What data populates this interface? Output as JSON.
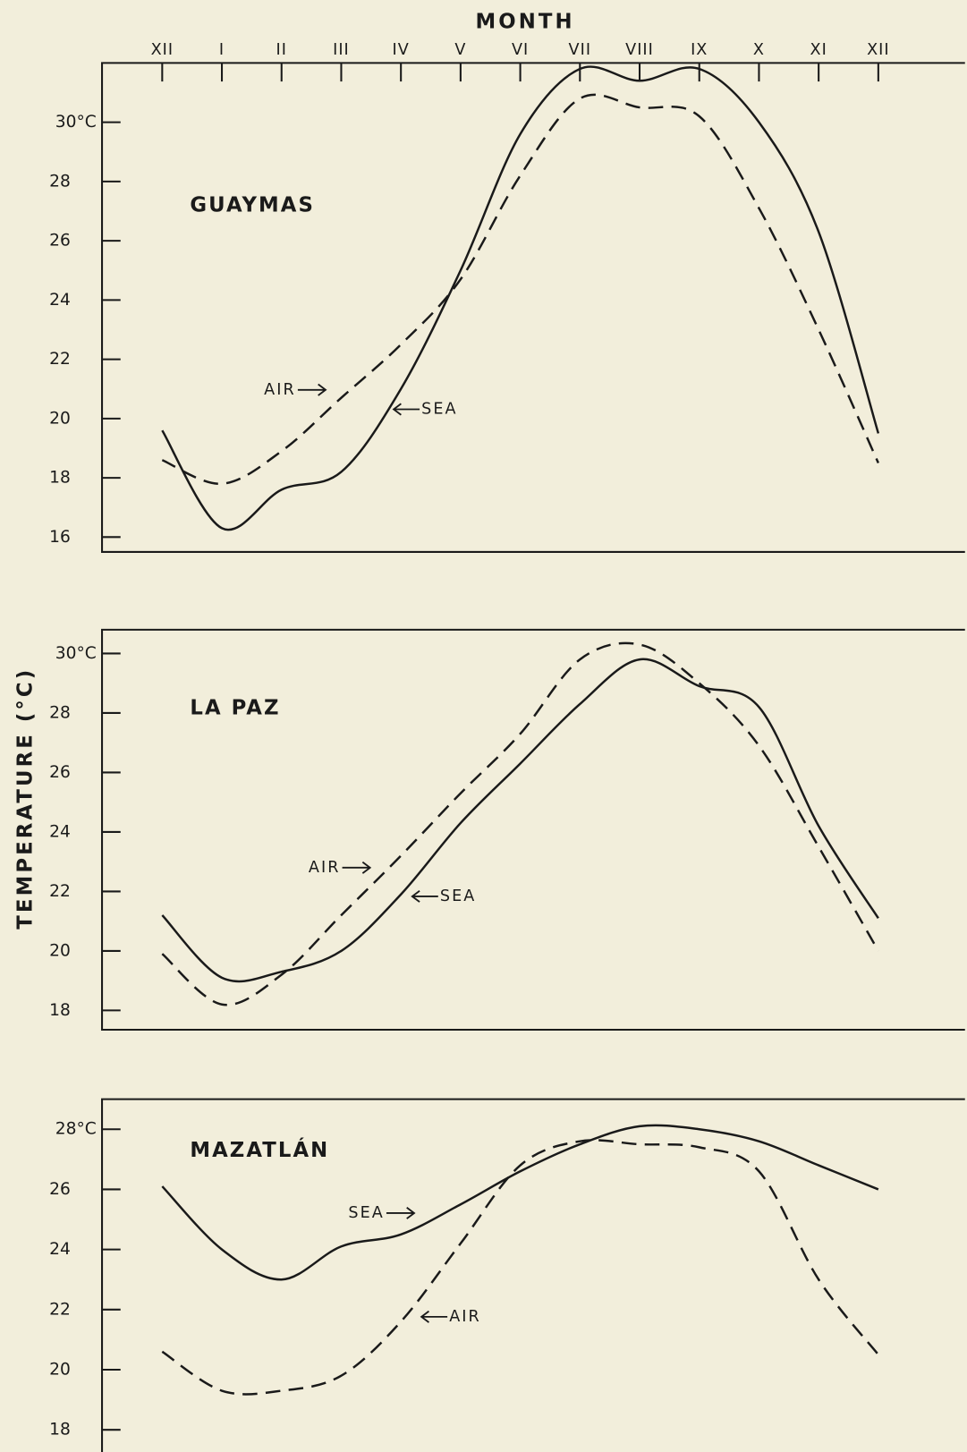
{
  "chart_data": [
    {
      "type": "line",
      "title": "GUAYMAS",
      "xlabel": "MONTH",
      "categories": [
        "XII",
        "I",
        "II",
        "III",
        "IV",
        "V",
        "VI",
        "VII",
        "VIII",
        "IX",
        "X",
        "XI",
        "XII"
      ],
      "ylim": [
        15.5,
        32
      ],
      "yticks": [
        16,
        18,
        20,
        22,
        24,
        26,
        28,
        {
          "value": 30,
          "label": "30°C"
        }
      ],
      "series": [
        {
          "name": "SEA",
          "color": "#1a1a1a",
          "values": [
            19.6,
            16.3,
            17.6,
            18.2,
            21.0,
            25.0,
            29.6,
            31.8,
            31.4,
            31.8,
            30.0,
            26.3,
            19.5
          ]
        },
        {
          "name": "AIR",
          "color": "#1a1a1a",
          "values": [
            18.6,
            17.8,
            18.9,
            20.7,
            22.5,
            24.7,
            28.2,
            30.8,
            30.5,
            30.2,
            27.1,
            23.0,
            18.5
          ]
        }
      ]
    },
    {
      "type": "line",
      "title": "LA PAZ",
      "ylabel": "TEMPERATURE (°C)",
      "ylim": [
        17.35,
        30.8
      ],
      "yticks": [
        18,
        20,
        22,
        24,
        26,
        28,
        {
          "value": 30,
          "label": "30°C"
        }
      ],
      "series": [
        {
          "name": "SEA",
          "color": "#1a1a1a",
          "values": [
            21.2,
            19.1,
            19.3,
            20.0,
            21.9,
            24.3,
            26.3,
            28.3,
            29.8,
            28.9,
            28.2,
            24.2,
            21.1
          ]
        },
        {
          "name": "AIR",
          "color": "#1a1a1a",
          "values": [
            19.9,
            18.2,
            19.2,
            21.2,
            23.2,
            25.3,
            27.3,
            29.8,
            30.3,
            29.0,
            26.9,
            23.5,
            20.0
          ]
        }
      ]
    },
    {
      "type": "line",
      "title": "MAZATLÁN",
      "ylim": [
        17.2,
        29
      ],
      "yticks": [
        18,
        20,
        22,
        24,
        26,
        {
          "value": 28,
          "label": "28°C"
        }
      ],
      "series": [
        {
          "name": "SEA",
          "color": "#1a1a1a",
          "values": [
            26.1,
            24.0,
            23.0,
            24.1,
            24.5,
            25.5,
            26.6,
            27.5,
            28.1,
            28.0,
            27.6,
            26.8,
            26.0
          ]
        },
        {
          "name": "AIR",
          "color": "#1a1a1a",
          "values": [
            20.6,
            19.3,
            19.3,
            19.8,
            21.6,
            24.2,
            26.8,
            27.6,
            27.5,
            27.4,
            26.6,
            23.0,
            20.5
          ]
        }
      ]
    }
  ]
}
